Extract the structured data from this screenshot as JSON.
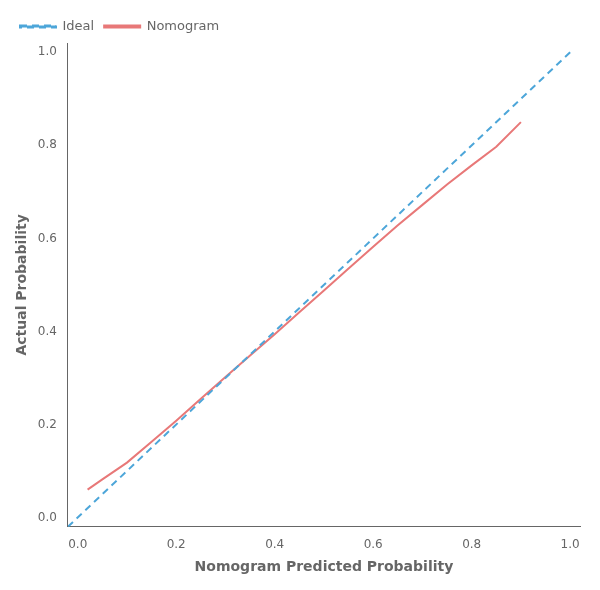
{
  "chart_data": {
    "type": "line",
    "xlabel": "Nomogram Predicted Probability",
    "ylabel": "Actual Probability",
    "series": [
      {
        "name": "Ideal",
        "color": "#4DA6D9",
        "line_style": "dashed",
        "x": [
          -0.02,
          1.0
        ],
        "values": [
          -0.02,
          1.0
        ]
      },
      {
        "name": "Nomogram",
        "color": "#E87878",
        "line_style": "solid",
        "x": [
          0.02,
          0.05,
          0.1,
          0.15,
          0.2,
          0.25,
          0.3,
          0.35,
          0.4,
          0.45,
          0.5,
          0.55,
          0.6,
          0.65,
          0.7,
          0.75,
          0.8,
          0.85,
          0.9
        ],
        "values": [
          0.06,
          0.082,
          0.118,
          0.163,
          0.208,
          0.255,
          0.302,
          0.348,
          0.394,
          0.441,
          0.488,
          0.535,
          0.582,
          0.628,
          0.672,
          0.716,
          0.757,
          0.797,
          0.85
        ]
      }
    ],
    "xlim": [
      -0.02,
      1.02
    ],
    "ylim": [
      -0.02,
      1.02
    ],
    "xticks": [
      {
        "value": 0.0,
        "label": "0.0"
      },
      0.2,
      0.4,
      0.6,
      0.8,
      {
        "value": 1.0,
        "label": "1.0"
      }
    ],
    "yticks": [
      {
        "value": 0.0,
        "label": "0.0"
      },
      0.2,
      0.4,
      0.6,
      0.8,
      {
        "value": 1.0,
        "label": "1.0"
      }
    ],
    "grid": false,
    "legend": "upper left"
  }
}
